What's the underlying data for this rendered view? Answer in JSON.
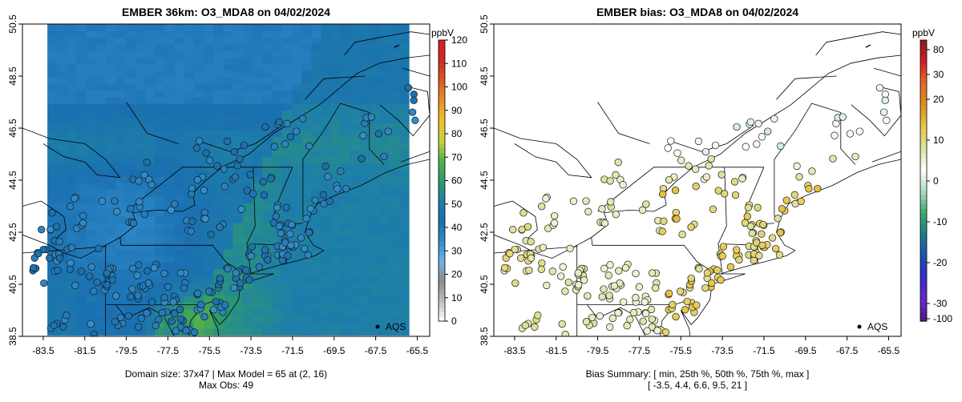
{
  "chart_data": [
    {
      "type": "heatmap",
      "title": "EMBER 36km: O3_MDA8 on 04/02/2024",
      "x_ticks": [
        "-83.5",
        "-81.5",
        "-79.5",
        "-77.5",
        "-75.5",
        "-73.5",
        "-71.5",
        "-69.5",
        "-67.5",
        "-65.5"
      ],
      "y_ticks": [
        "38.5",
        "40.5",
        "42.5",
        "44.5",
        "46.5",
        "48.5",
        "50.5"
      ],
      "xlim": [
        -84.5,
        -64.9
      ],
      "ylim": [
        38.5,
        50.5
      ],
      "colorbar": {
        "unit": "ppbV",
        "ticks": [
          "0",
          "10",
          "20",
          "30",
          "40",
          "50",
          "60",
          "70",
          "80",
          "90",
          "100",
          "110",
          "120"
        ],
        "range": [
          0,
          120
        ],
        "colors": [
          "#ffffff",
          "#bfbfbf",
          "#8c8c8c",
          "#6fb3e0",
          "#2e8bc9",
          "#1a6fb0",
          "#1e7fa8",
          "#2f9a6e",
          "#56b04a",
          "#c9d23d",
          "#f0c02d",
          "#e7902a",
          "#dc5a1e",
          "#cf2a2a",
          "#e01b1b"
        ]
      },
      "legend": "AQS",
      "footer": [
        "Domain size: 37x47 | Max Model = 65 at (2, 16)",
        "Max Obs: 49"
      ],
      "max_model": 65,
      "max_obs": 49
    },
    {
      "type": "scatter",
      "title": "EMBER bias: O3_MDA8 on 04/02/2024",
      "x_ticks": [
        "-83.5",
        "-81.5",
        "-79.5",
        "-77.5",
        "-75.5",
        "-73.5",
        "-71.5",
        "-69.5",
        "-67.5",
        "-65.5"
      ],
      "y_ticks": [
        "38.5",
        "40.5",
        "42.5",
        "44.5",
        "46.5",
        "48.5",
        "50.5"
      ],
      "xlim": [
        -84.5,
        -64.9
      ],
      "ylim": [
        38.5,
        50.5
      ],
      "colorbar": {
        "unit": "ppbV",
        "ticks": [
          "80",
          "30",
          "20",
          "10",
          "0",
          "-10",
          "-20",
          "-30",
          "-100"
        ],
        "colors": [
          "#8b1a1a",
          "#d42020",
          "#e86a2a",
          "#dc8f1e",
          "#e8c84a",
          "#dde3a0",
          "#ffffff",
          "#a8dcc0",
          "#3aa86a",
          "#1f7a8c",
          "#1a50b0",
          "#3a2ad0",
          "#6a28c8",
          "#4a1a80"
        ]
      },
      "legend": "AQS",
      "footer": [
        "Bias Summary: [ min, 25th %, 50th %, 75th %, max ]",
        "[ -3.5,   4.4,   6.6,   9.5,   21 ]"
      ],
      "bias_summary": {
        "min": -3.5,
        "p25": 4.4,
        "p50": 6.6,
        "p75": 9.5,
        "max": 21
      }
    }
  ]
}
